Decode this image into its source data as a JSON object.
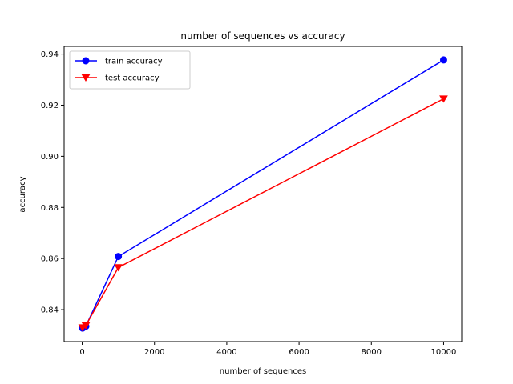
{
  "chart_data": {
    "type": "line",
    "title": "number of sequences vs accuracy",
    "xlabel": "number of sequences",
    "ylabel": "accuracy",
    "xlim": [
      -500,
      10500
    ],
    "ylim": [
      0.8275,
      0.943
    ],
    "xticks": [
      0,
      2000,
      4000,
      6000,
      8000,
      10000
    ],
    "xtick_labels": [
      "0",
      "2000",
      "4000",
      "6000",
      "8000",
      "10000"
    ],
    "yticks": [
      0.84,
      0.86,
      0.88,
      0.9,
      0.92,
      0.94
    ],
    "ytick_labels": [
      "0.84",
      "0.86",
      "0.88",
      "0.90",
      "0.92",
      "0.94"
    ],
    "grid": false,
    "legend_position": "top-left",
    "series": [
      {
        "name": "train accuracy",
        "color": "#0000ff",
        "marker": "circle",
        "x": [
          10,
          100,
          1000,
          10000
        ],
        "y": [
          0.8328,
          0.8335,
          0.8608,
          0.9377
        ]
      },
      {
        "name": "test accuracy",
        "color": "#ff0000",
        "marker": "triangle-down",
        "x": [
          10,
          100,
          1000,
          10000
        ],
        "y": [
          0.833,
          0.8338,
          0.8565,
          0.9225
        ]
      }
    ]
  }
}
